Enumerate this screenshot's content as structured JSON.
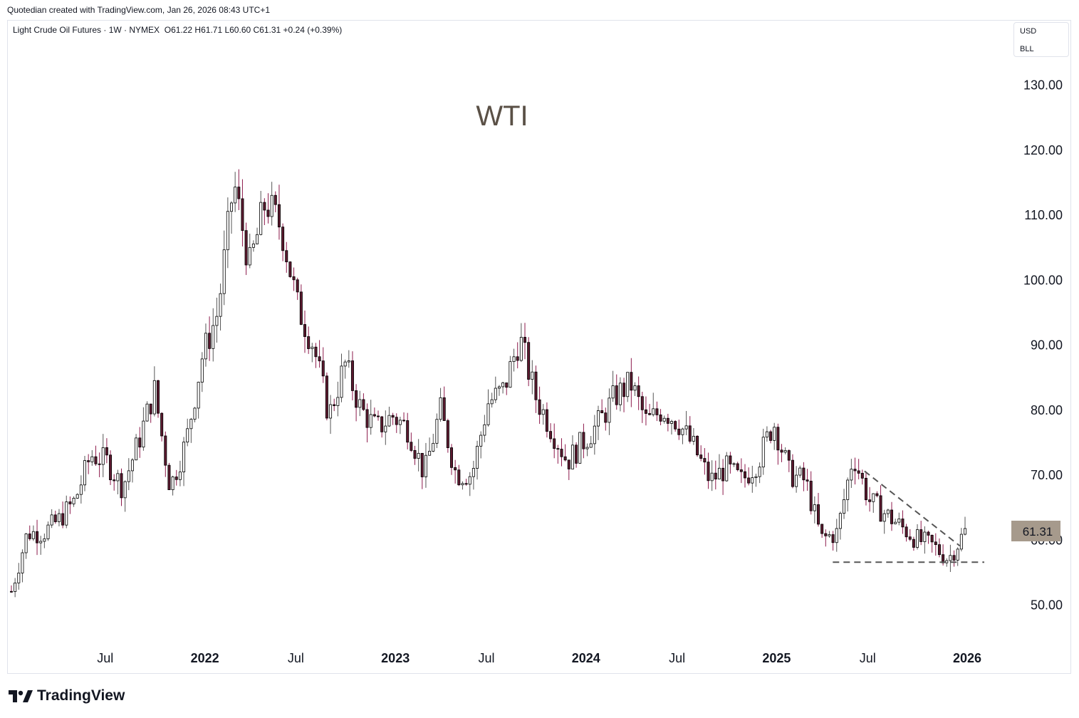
{
  "header": {
    "created_by": "Quotedian created with TradingView.com, Jan 26, 2026 08:43 UTC+1"
  },
  "legend": {
    "symbol": "Light Crude Oil Futures · 1W · NYMEX",
    "ohlc": "O61.22  H61.71  L60.60  C61.31  +0.24 (+0.39%)"
  },
  "currency": {
    "line1": "USD",
    "line2": "BLL"
  },
  "brand": {
    "name": "TradingView"
  },
  "colors": {
    "candle": "#000000",
    "down_body": "#5d1a30",
    "wick": "#8c1a4b",
    "trendline": "#555555",
    "price_label_bg": "#a69a8c"
  },
  "chart_data": {
    "type": "candlestick",
    "title": "WTI",
    "timeframe": "1W",
    "ylim": [
      43,
      138
    ],
    "y_ticks": [
      "130.00",
      "120.00",
      "110.00",
      "100.00",
      "90.00",
      "80.00",
      "70.00",
      "60.00",
      "50.00"
    ],
    "x_ticks": [
      "Jul",
      "2022",
      "Jul",
      "2023",
      "Jul",
      "2024",
      "Jul",
      "2025",
      "Jul",
      "2026"
    ],
    "last_price": "61.31",
    "series": [
      {
        "name": "monthly_path",
        "x": [
          "2021-01",
          "2021-02",
          "2021-03",
          "2021-04",
          "2021-05",
          "2021-06",
          "2021-07",
          "2021-08",
          "2021-09",
          "2021-10",
          "2021-11",
          "2021-12",
          "2022-01",
          "2022-02",
          "2022-03",
          "2022-04",
          "2022-05",
          "2022-06",
          "2022-07",
          "2022-08",
          "2022-09",
          "2022-10",
          "2022-11",
          "2022-12",
          "2023-01",
          "2023-02",
          "2023-03",
          "2023-04",
          "2023-05",
          "2023-06",
          "2023-07",
          "2023-08",
          "2023-09",
          "2023-10",
          "2023-11",
          "2023-12",
          "2024-01",
          "2024-02",
          "2024-03",
          "2024-04",
          "2024-05",
          "2024-06",
          "2024-07",
          "2024-08",
          "2024-09",
          "2024-10",
          "2024-11",
          "2024-12",
          "2025-01",
          "2025-02",
          "2025-03",
          "2025-04",
          "2025-05",
          "2025-06",
          "2025-07",
          "2025-08",
          "2025-09",
          "2025-10",
          "2025-11",
          "2025-12",
          "2026-01"
        ],
        "values": [
          52,
          61,
          61,
          63,
          66,
          73,
          72,
          68,
          75,
          83,
          68,
          75,
          88,
          95,
          115,
          102,
          112,
          108,
          96,
          90,
          79,
          87,
          80,
          77,
          79,
          77,
          70,
          80,
          70,
          70,
          81,
          83,
          91,
          82,
          77,
          72,
          75,
          78,
          82,
          84,
          78,
          80,
          78,
          74,
          69,
          71,
          69,
          72,
          78,
          70,
          69,
          60,
          61,
          73,
          66,
          64,
          62,
          60,
          59,
          57,
          61
        ]
      }
    ],
    "annotations": [
      {
        "type": "support",
        "value": 56.5,
        "from": "2025-04",
        "to": "2026-01"
      },
      {
        "type": "downtrend",
        "from": [
          "2025-06",
          70.5
        ],
        "to": [
          "2025-12",
          59
        ]
      }
    ]
  }
}
